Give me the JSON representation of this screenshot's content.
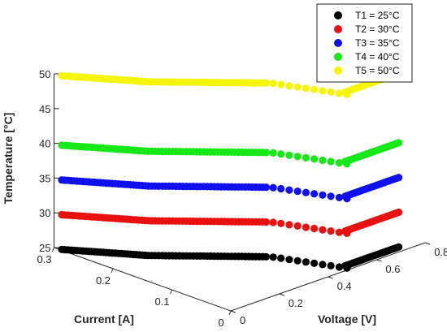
{
  "chart_data": {
    "type": "scatter",
    "projection": "3d",
    "xlabel": "Current [A]",
    "ylabel": "Voltage [V]",
    "zlabel": "Temperature [°C]",
    "xlim": [
      0,
      0.3
    ],
    "ylim": [
      0,
      0.8
    ],
    "zlim": [
      25,
      50
    ],
    "x_ticks": [
      "0",
      "0.1",
      "0.2",
      "0.3"
    ],
    "y_ticks": [
      "0",
      "0.2",
      "0.4",
      "0.6",
      "0.8"
    ],
    "z_ticks": [
      "25",
      "30",
      "35",
      "40",
      "45",
      "50"
    ],
    "legend_position": "top-right",
    "grid": false,
    "series": [
      {
        "name": "T1 = 25°C",
        "z": 25,
        "color": "#000000"
      },
      {
        "name": "T2 = 30°C",
        "z": 30,
        "color": "#e8110f"
      },
      {
        "name": "T3 = 35°C",
        "z": 35,
        "color": "#1010ee"
      },
      {
        "name": "T4 = 40°C",
        "z": 40,
        "color": "#17e817"
      },
      {
        "name": "T5 = 50°C",
        "z": 50,
        "color": "#f5f50a"
      }
    ],
    "iv_curve": {
      "current": [
        0.289,
        0.286,
        0.283,
        0.28,
        0.277,
        0.274,
        0.271,
        0.268,
        0.265,
        0.262,
        0.259,
        0.256,
        0.253,
        0.25,
        0.247,
        0.244,
        0.241,
        0.238,
        0.235,
        0.232,
        0.229,
        0.226,
        0.223,
        0.22,
        0.217,
        0.214,
        0.211,
        0.208,
        0.205,
        0.202,
        0.199,
        0.196,
        0.193,
        0.19,
        0.187,
        0.184,
        0.181,
        0.178,
        0.175,
        0.172,
        0.169,
        0.166,
        0.163,
        0.16,
        0.157,
        0.154,
        0.151,
        0.148,
        0.145,
        0.142,
        0.139,
        0.136,
        0.133,
        0.13,
        0.127,
        0.124,
        0.121,
        0.118,
        0.115,
        0.112,
        0.109,
        0.106,
        0.103,
        0.1,
        0.093,
        0.084,
        0.074,
        0.064,
        0.054,
        0.044,
        0.034,
        0.024,
        0.014,
        0.005,
        0.012,
        0.012,
        0.012,
        0.012,
        0.012,
        0.012,
        0.012,
        0.012,
        0.012,
        0.012,
        0.012,
        0.012,
        0.012,
        0.012,
        0.012,
        0.012,
        0.012,
        0.012,
        0.012,
        0.012,
        0.012,
        0.012,
        0.012
      ],
      "voltage": [
        0.005,
        0.01,
        0.015,
        0.02,
        0.025,
        0.03,
        0.035,
        0.04,
        0.045,
        0.05,
        0.055,
        0.06,
        0.065,
        0.07,
        0.075,
        0.08,
        0.085,
        0.09,
        0.095,
        0.1,
        0.105,
        0.11,
        0.115,
        0.12,
        0.125,
        0.13,
        0.135,
        0.14,
        0.145,
        0.15,
        0.157,
        0.164,
        0.171,
        0.178,
        0.185,
        0.192,
        0.199,
        0.206,
        0.213,
        0.22,
        0.227,
        0.234,
        0.241,
        0.248,
        0.255,
        0.262,
        0.269,
        0.276,
        0.283,
        0.29,
        0.297,
        0.304,
        0.311,
        0.318,
        0.325,
        0.332,
        0.339,
        0.346,
        0.353,
        0.36,
        0.367,
        0.374,
        0.381,
        0.388,
        0.4,
        0.41,
        0.42,
        0.43,
        0.44,
        0.45,
        0.46,
        0.47,
        0.48,
        0.49,
        0.5,
        0.51,
        0.52,
        0.53,
        0.54,
        0.55,
        0.56,
        0.57,
        0.58,
        0.59,
        0.6,
        0.61,
        0.62,
        0.63,
        0.64,
        0.65,
        0.66,
        0.67,
        0.68,
        0.69,
        0.7,
        0.71,
        0.72
      ]
    }
  }
}
